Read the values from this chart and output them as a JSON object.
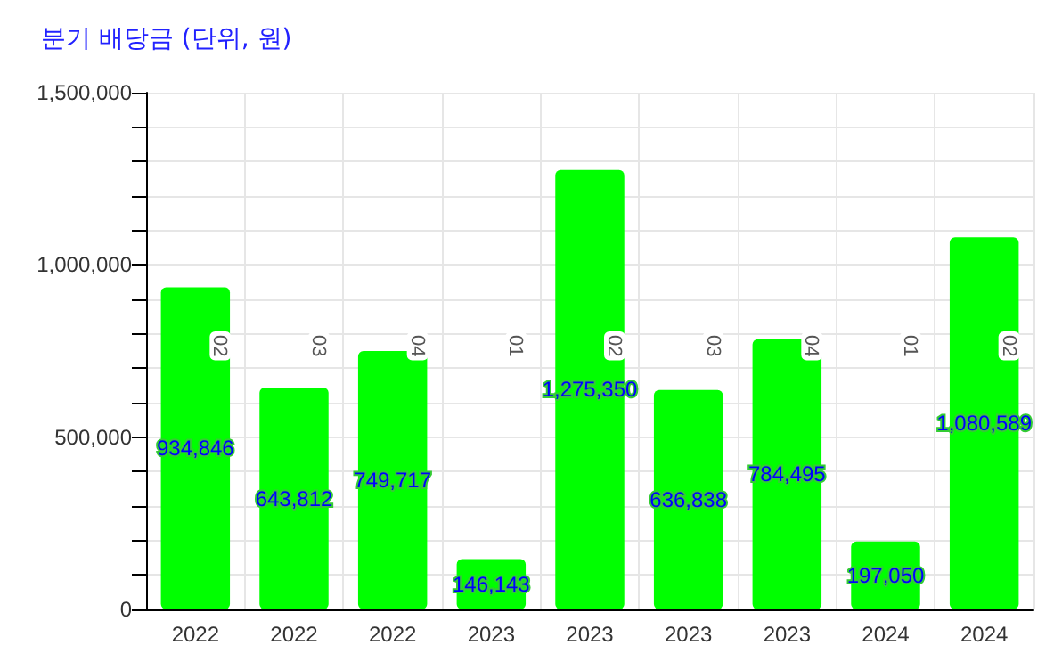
{
  "chart_data": {
    "type": "bar",
    "title": "분기 배당금 (단위, 원)",
    "categories": [
      "2022",
      "2022",
      "2022",
      "2023",
      "2023",
      "2023",
      "2023",
      "2024",
      "2024"
    ],
    "values": [
      934846,
      643812,
      749717,
      146143,
      1275350,
      636838,
      784495,
      197050,
      1080589
    ],
    "value_labels": [
      "934,846",
      "643,812",
      "749,717",
      "146,143",
      "1,275,350",
      "636,838",
      "784,495",
      "197,050",
      "1,080,589"
    ],
    "color": "#00ff00",
    "annotations": [
      "02",
      "03",
      "04",
      "01",
      "02",
      "03",
      "04",
      "01",
      "02"
    ],
    "ylim": [
      0,
      1500000
    ],
    "yticks": [
      {
        "value": 0,
        "label": "0"
      },
      {
        "value": 100000,
        "label": null
      },
      {
        "value": 200000,
        "label": null
      },
      {
        "value": 300000,
        "label": null
      },
      {
        "value": 400000,
        "label": null
      },
      {
        "value": 500000,
        "label": "500,000"
      },
      {
        "value": 600000,
        "label": null
      },
      {
        "value": 700000,
        "label": null
      },
      {
        "value": 800000,
        "label": null
      },
      {
        "value": 900000,
        "label": null
      },
      {
        "value": 1000000,
        "label": "1,000,000"
      },
      {
        "value": 1100000,
        "label": null
      },
      {
        "value": 1200000,
        "label": null
      },
      {
        "value": 1300000,
        "label": null
      },
      {
        "value": 1400000,
        "label": null
      },
      {
        "value": 1500000,
        "label": "1,500,000"
      }
    ],
    "grid": true
  }
}
